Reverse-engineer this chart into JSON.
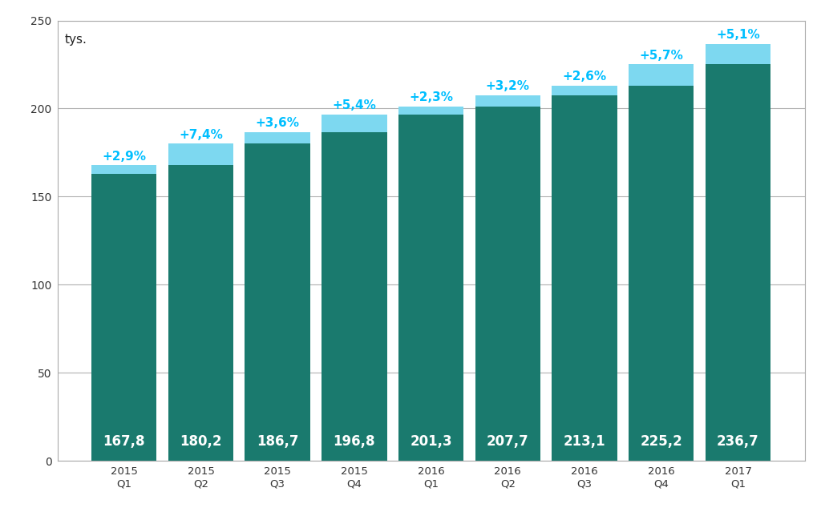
{
  "categories": [
    "2015\nQ1",
    "2015\nQ2",
    "2015\nQ3",
    "2015\nQ4",
    "2016\nQ1",
    "2016\nQ2",
    "2016\nQ3",
    "2016\nQ4",
    "2017\nQ1"
  ],
  "values": [
    167.8,
    180.2,
    186.7,
    196.8,
    201.3,
    207.7,
    213.1,
    225.2,
    236.7
  ],
  "pct_labels": [
    "+2,9%",
    "+7,4%",
    "+3,6%",
    "+5,4%",
    "+2,3%",
    "+3,2%",
    "+2,6%",
    "+5,7%",
    "+5,1%"
  ],
  "prev_values": [
    163.1,
    167.8,
    180.2,
    186.7,
    196.8,
    201.3,
    207.7,
    213.1,
    225.2
  ],
  "bar_color_main": "#1a7a6e",
  "bar_color_top": "#7dd8f0",
  "background_color": "#ffffff",
  "grid_color": "#b0b0b0",
  "spine_color": "#aaaaaa",
  "ylabel_inside": "tys.",
  "ylim": [
    0,
    250
  ],
  "yticks": [
    0,
    50,
    100,
    150,
    200,
    250
  ],
  "value_label_color": "#ffffff",
  "pct_label_color": "#00bfff",
  "value_fontsize": 12,
  "pct_fontsize": 11,
  "bar_width": 0.85
}
